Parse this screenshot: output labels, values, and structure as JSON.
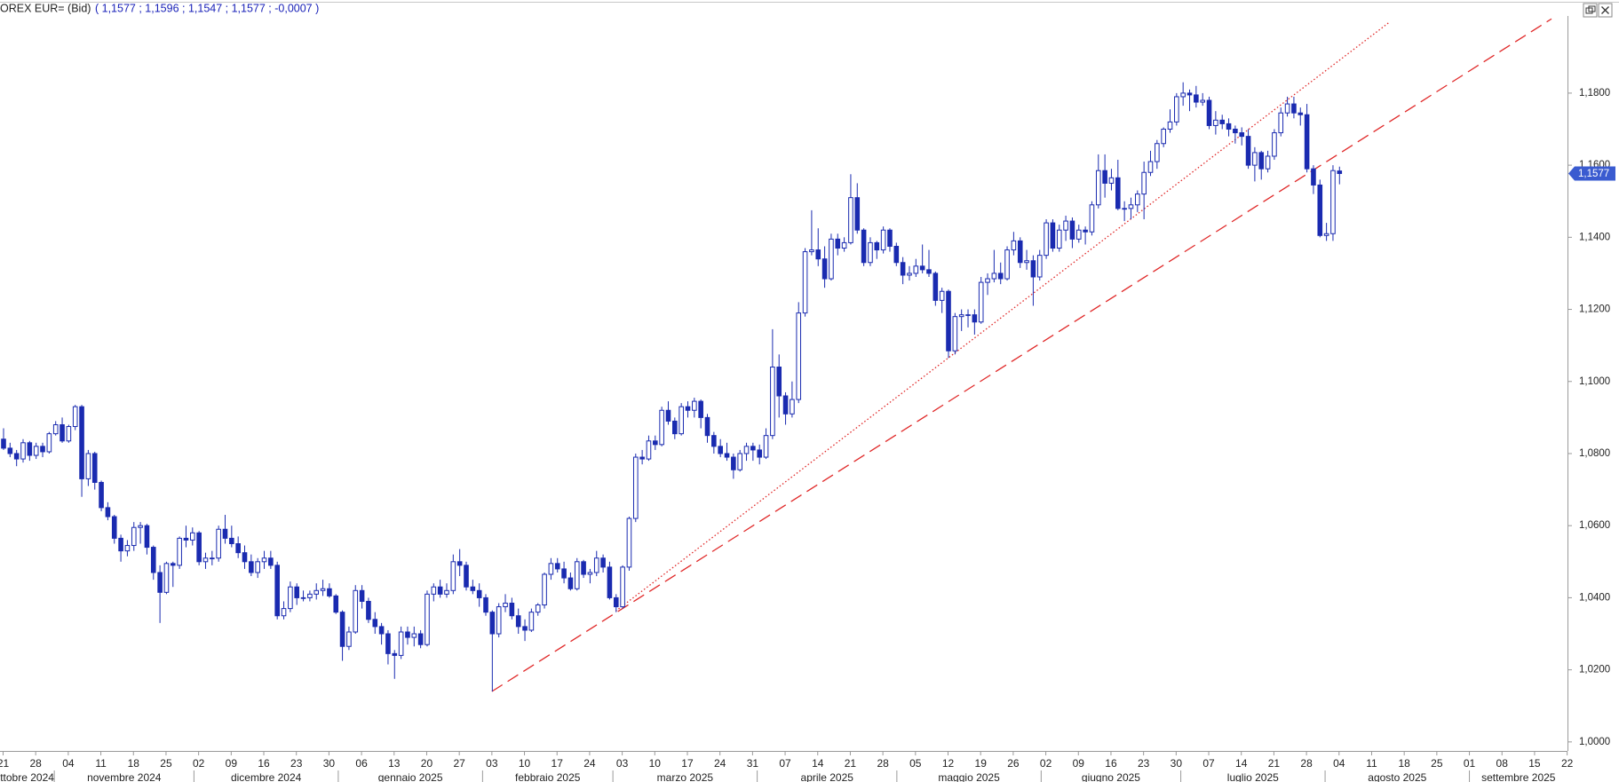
{
  "chart_data": {
    "type": "candlestick",
    "instrument": "OREX EUR= (Bid)",
    "quote": "( 1,1577 ;  1,1596 ;  1,1547 ;  1,1577 ;  -0,0007 )",
    "color": "#1a2bb0",
    "trendline_color": "#e02828",
    "ylim": [
      0.9975,
      1.2014
    ],
    "yticks": [
      {
        "value": 1.0,
        "label": "1,0000"
      },
      {
        "value": 1.02,
        "label": "1,0200"
      },
      {
        "value": 1.04,
        "label": "1,0400"
      },
      {
        "value": 1.06,
        "label": "1,0600"
      },
      {
        "value": 1.08,
        "label": "1,0800"
      },
      {
        "value": 1.1,
        "label": "1,1000"
      },
      {
        "value": 1.12,
        "label": "1,1200"
      },
      {
        "value": 1.14,
        "label": "1,1400"
      },
      {
        "value": 1.16,
        "label": "1,1600"
      },
      {
        "value": 1.18,
        "label": "1,1800"
      }
    ],
    "last_price": {
      "value": 1.1577,
      "label": "1,1577"
    },
    "categories": [
      "21",
      "28",
      "04",
      "11",
      "18",
      "25",
      "02",
      "09",
      "16",
      "23",
      "30",
      "06",
      "13",
      "20",
      "27",
      "03",
      "10",
      "17",
      "24",
      "03",
      "10",
      "17",
      "24",
      "31",
      "07",
      "14",
      "21",
      "28",
      "05",
      "12",
      "19",
      "26",
      "02",
      "09",
      "16",
      "23",
      "30",
      "07",
      "14",
      "21",
      "28",
      "04",
      "11",
      "18",
      "25",
      "01",
      "08",
      "15",
      "22"
    ],
    "months": [
      "ttobre 2024",
      "novembre 2024",
      "dicembre 2024",
      "gennaio 2025",
      "febbraio 2025",
      "marzo 2025",
      "aprile 2025",
      "maggio 2025",
      "giugno 2025",
      "luglio 2025",
      "agosto 2025",
      "settembre 2025"
    ],
    "trendlines": [
      {
        "style": "dashed",
        "points": [
          [
            75,
            1.014
          ],
          [
            237.6,
            1.2006
          ]
        ]
      },
      {
        "style": "dotted",
        "points": [
          [
            94,
            1.0363
          ],
          [
            212.6,
            1.1995
          ]
        ]
      }
    ],
    "candles": [
      [
        1.084,
        1.087,
        1.081,
        1.0815
      ],
      [
        1.0815,
        1.083,
        1.079,
        1.08
      ],
      [
        1.08,
        1.081,
        1.0765,
        1.0785
      ],
      [
        1.0785,
        1.084,
        1.0775,
        1.083
      ],
      [
        1.083,
        1.0835,
        1.078,
        1.0795
      ],
      [
        1.0795,
        1.083,
        1.0785,
        1.082
      ],
      [
        1.082,
        1.083,
        1.079,
        1.0805
      ],
      [
        1.0805,
        1.086,
        1.08,
        1.0855
      ],
      [
        1.0855,
        1.089,
        1.085,
        1.088
      ],
      [
        1.088,
        1.09,
        1.083,
        1.0835
      ],
      [
        1.0835,
        1.088,
        1.083,
        1.0875
      ],
      [
        1.0875,
        1.0935,
        1.0865,
        1.093
      ],
      [
        1.093,
        1.0935,
        1.068,
        1.073
      ],
      [
        1.073,
        1.081,
        1.071,
        1.08
      ],
      [
        1.08,
        1.0805,
        1.07,
        1.072
      ],
      [
        1.072,
        1.0725,
        1.064,
        1.065
      ],
      [
        1.065,
        1.0665,
        1.0615,
        1.0625
      ],
      [
        1.0625,
        1.063,
        1.055,
        1.0565
      ],
      [
        1.0565,
        1.0575,
        1.05,
        1.053
      ],
      [
        1.053,
        1.056,
        1.0515,
        1.0545
      ],
      [
        1.0545,
        1.061,
        1.053,
        1.0595
      ],
      [
        1.0595,
        1.061,
        1.055,
        1.06
      ],
      [
        1.06,
        1.0605,
        1.052,
        1.054
      ],
      [
        1.054,
        1.0545,
        1.045,
        1.047
      ],
      [
        1.047,
        1.049,
        1.033,
        1.0415
      ],
      [
        1.0415,
        1.05,
        1.041,
        1.0495
      ],
      [
        1.0495,
        1.05,
        1.043,
        1.049
      ],
      [
        1.049,
        1.057,
        1.048,
        1.0565
      ],
      [
        1.0565,
        1.06,
        1.054,
        1.056
      ],
      [
        1.056,
        1.0595,
        1.0545,
        1.058
      ],
      [
        1.058,
        1.0585,
        1.049,
        1.05
      ],
      [
        1.05,
        1.0525,
        1.048,
        1.051
      ],
      [
        1.051,
        1.053,
        1.049,
        1.051
      ],
      [
        1.051,
        1.06,
        1.05,
        1.059
      ],
      [
        1.059,
        1.063,
        1.055,
        1.0565
      ],
      [
        1.0565,
        1.06,
        1.054,
        1.055
      ],
      [
        1.055,
        1.057,
        1.051,
        1.0525
      ],
      [
        1.0525,
        1.0545,
        1.048,
        1.05
      ],
      [
        1.05,
        1.052,
        1.046,
        1.047
      ],
      [
        1.047,
        1.051,
        1.0455,
        1.05
      ],
      [
        1.05,
        1.053,
        1.048,
        1.051
      ],
      [
        1.051,
        1.053,
        1.048,
        1.049
      ],
      [
        1.049,
        1.05,
        1.034,
        1.035
      ],
      [
        1.035,
        1.039,
        1.034,
        1.037
      ],
      [
        1.037,
        1.0445,
        1.036,
        1.043
      ],
      [
        1.043,
        1.044,
        1.038,
        1.04
      ],
      [
        1.04,
        1.042,
        1.039,
        1.04
      ],
      [
        1.04,
        1.042,
        1.039,
        1.041
      ],
      [
        1.041,
        1.044,
        1.0395,
        1.042
      ],
      [
        1.042,
        1.045,
        1.0405,
        1.0425
      ],
      [
        1.0425,
        1.044,
        1.04,
        1.0405
      ],
      [
        1.0405,
        1.041,
        1.0355,
        1.036
      ],
      [
        1.036,
        1.0365,
        1.0225,
        1.0265
      ],
      [
        1.0265,
        1.032,
        1.0255,
        1.0305
      ],
      [
        1.0305,
        1.0435,
        1.03,
        1.042
      ],
      [
        1.042,
        1.0435,
        1.037,
        1.039
      ],
      [
        1.039,
        1.04,
        1.033,
        1.034
      ],
      [
        1.034,
        1.036,
        1.03,
        1.032
      ],
      [
        1.032,
        1.033,
        1.027,
        1.03
      ],
      [
        1.03,
        1.031,
        1.0215,
        1.0245
      ],
      [
        1.0245,
        1.0255,
        1.0175,
        1.024
      ],
      [
        1.024,
        1.032,
        1.023,
        1.0305
      ],
      [
        1.0305,
        1.032,
        1.027,
        1.029
      ],
      [
        1.029,
        1.032,
        1.0265,
        1.03
      ],
      [
        1.03,
        1.031,
        1.026,
        1.027
      ],
      [
        1.027,
        1.042,
        1.0265,
        1.041
      ],
      [
        1.041,
        1.044,
        1.039,
        1.043
      ],
      [
        1.043,
        1.045,
        1.04,
        1.041
      ],
      [
        1.041,
        1.044,
        1.04,
        1.042
      ],
      [
        1.042,
        1.052,
        1.041,
        1.05
      ],
      [
        1.05,
        1.0535,
        1.046,
        1.049
      ],
      [
        1.049,
        1.05,
        1.042,
        1.043
      ],
      [
        1.043,
        1.045,
        1.041,
        1.042
      ],
      [
        1.042,
        1.044,
        1.0375,
        1.04
      ],
      [
        1.04,
        1.041,
        1.035,
        1.036
      ],
      [
        1.036,
        1.0365,
        1.014,
        1.03
      ],
      [
        1.03,
        1.0385,
        1.029,
        1.0375
      ],
      [
        1.0375,
        1.041,
        1.036,
        1.0385
      ],
      [
        1.0385,
        1.04,
        1.034,
        1.035
      ],
      [
        1.035,
        1.037,
        1.03,
        1.032
      ],
      [
        1.032,
        1.034,
        1.028,
        1.031
      ],
      [
        1.031,
        1.037,
        1.0305,
        1.036
      ],
      [
        1.036,
        1.0385,
        1.035,
        1.038
      ],
      [
        1.038,
        1.047,
        1.037,
        1.0465
      ],
      [
        1.0465,
        1.051,
        1.045,
        1.0495
      ],
      [
        1.0495,
        1.051,
        1.047,
        1.048
      ],
      [
        1.048,
        1.05,
        1.044,
        1.0455
      ],
      [
        1.0455,
        1.047,
        1.042,
        1.0425
      ],
      [
        1.0425,
        1.051,
        1.042,
        1.05
      ],
      [
        1.05,
        1.0505,
        1.0455,
        1.0465
      ],
      [
        1.0465,
        1.048,
        1.044,
        1.047
      ],
      [
        1.047,
        1.053,
        1.046,
        1.051
      ],
      [
        1.051,
        1.052,
        1.047,
        1.0485
      ],
      [
        1.0485,
        1.05,
        1.0395,
        1.04
      ],
      [
        1.04,
        1.041,
        1.036,
        1.0375
      ],
      [
        1.0375,
        1.049,
        1.037,
        1.0485
      ],
      [
        1.0485,
        1.0625,
        1.0475,
        1.062
      ],
      [
        1.062,
        1.08,
        1.061,
        1.079
      ],
      [
        1.079,
        1.081,
        1.077,
        1.0785
      ],
      [
        1.0785,
        1.085,
        1.078,
        1.0835
      ],
      [
        1.0835,
        1.085,
        1.081,
        1.0825
      ],
      [
        1.0825,
        1.093,
        1.082,
        1.092
      ],
      [
        1.092,
        1.0945,
        1.088,
        1.089
      ],
      [
        1.089,
        1.09,
        1.084,
        1.0855
      ],
      [
        1.0855,
        1.094,
        1.085,
        1.093
      ],
      [
        1.093,
        1.0945,
        1.09,
        1.092
      ],
      [
        1.092,
        1.0955,
        1.09,
        1.0945
      ],
      [
        1.0945,
        1.095,
        1.087,
        1.09
      ],
      [
        1.09,
        1.091,
        1.083,
        1.085
      ],
      [
        1.085,
        1.086,
        1.08,
        1.082
      ],
      [
        1.082,
        1.084,
        1.079,
        1.08
      ],
      [
        1.08,
        1.083,
        1.078,
        1.079
      ],
      [
        1.079,
        1.08,
        1.073,
        1.0755
      ],
      [
        1.0755,
        1.081,
        1.075,
        1.08
      ],
      [
        1.08,
        1.083,
        1.078,
        1.082
      ],
      [
        1.082,
        1.083,
        1.078,
        1.081
      ],
      [
        1.081,
        1.0825,
        1.077,
        1.079
      ],
      [
        1.079,
        1.087,
        1.0785,
        1.085
      ],
      [
        1.085,
        1.1145,
        1.084,
        1.104
      ],
      [
        1.104,
        1.1075,
        1.09,
        1.096
      ],
      [
        1.096,
        1.097,
        1.088,
        1.091
      ],
      [
        1.091,
        1.1,
        1.09,
        1.095
      ],
      [
        1.095,
        1.122,
        1.094,
        1.119
      ],
      [
        1.119,
        1.137,
        1.118,
        1.136
      ],
      [
        1.136,
        1.1475,
        1.135,
        1.1365
      ],
      [
        1.1365,
        1.1425,
        1.132,
        1.134
      ],
      [
        1.134,
        1.1375,
        1.126,
        1.1285
      ],
      [
        1.1285,
        1.141,
        1.128,
        1.1395
      ],
      [
        1.1395,
        1.141,
        1.135,
        1.137
      ],
      [
        1.137,
        1.14,
        1.136,
        1.1385
      ],
      [
        1.1385,
        1.1575,
        1.138,
        1.151
      ],
      [
        1.151,
        1.155,
        1.141,
        1.142
      ],
      [
        1.142,
        1.1425,
        1.132,
        1.133
      ],
      [
        1.133,
        1.14,
        1.132,
        1.1385
      ],
      [
        1.1385,
        1.139,
        1.134,
        1.1365
      ],
      [
        1.1365,
        1.143,
        1.1355,
        1.142
      ],
      [
        1.142,
        1.1425,
        1.136,
        1.1375
      ],
      [
        1.1375,
        1.1385,
        1.132,
        1.133
      ],
      [
        1.133,
        1.1345,
        1.127,
        1.1295
      ],
      [
        1.1295,
        1.132,
        1.128,
        1.13
      ],
      [
        1.13,
        1.134,
        1.129,
        1.132
      ],
      [
        1.132,
        1.138,
        1.13,
        1.131
      ],
      [
        1.131,
        1.1365,
        1.129,
        1.13
      ],
      [
        1.13,
        1.1305,
        1.121,
        1.1225
      ],
      [
        1.1225,
        1.126,
        1.119,
        1.125
      ],
      [
        1.125,
        1.1255,
        1.1065,
        1.1085
      ],
      [
        1.1085,
        1.119,
        1.1075,
        1.118
      ],
      [
        1.118,
        1.12,
        1.114,
        1.1185
      ],
      [
        1.1185,
        1.12,
        1.115,
        1.1185
      ],
      [
        1.1185,
        1.12,
        1.113,
        1.1165
      ],
      [
        1.1165,
        1.129,
        1.116,
        1.1275
      ],
      [
        1.1275,
        1.13,
        1.124,
        1.1285
      ],
      [
        1.1285,
        1.1365,
        1.1275,
        1.13
      ],
      [
        1.13,
        1.133,
        1.127,
        1.1285
      ],
      [
        1.1285,
        1.1375,
        1.128,
        1.1365
      ],
      [
        1.1365,
        1.1415,
        1.135,
        1.139
      ],
      [
        1.139,
        1.14,
        1.1315,
        1.133
      ],
      [
        1.133,
        1.1365,
        1.131,
        1.1335
      ],
      [
        1.1335,
        1.135,
        1.121,
        1.129
      ],
      [
        1.129,
        1.1365,
        1.128,
        1.135
      ],
      [
        1.135,
        1.145,
        1.134,
        1.144
      ],
      [
        1.144,
        1.145,
        1.136,
        1.137
      ],
      [
        1.137,
        1.1435,
        1.136,
        1.142
      ],
      [
        1.142,
        1.146,
        1.139,
        1.1445
      ],
      [
        1.1445,
        1.1455,
        1.137,
        1.1395
      ],
      [
        1.1395,
        1.1435,
        1.1385,
        1.142
      ],
      [
        1.142,
        1.143,
        1.138,
        1.1415
      ],
      [
        1.1415,
        1.15,
        1.1405,
        1.149
      ],
      [
        1.149,
        1.163,
        1.148,
        1.1585
      ],
      [
        1.1585,
        1.163,
        1.151,
        1.155
      ],
      [
        1.155,
        1.159,
        1.153,
        1.1565
      ],
      [
        1.1565,
        1.1615,
        1.1475,
        1.148
      ],
      [
        1.148,
        1.15,
        1.1445,
        1.148
      ],
      [
        1.148,
        1.151,
        1.145,
        1.149
      ],
      [
        1.149,
        1.153,
        1.147,
        1.152
      ],
      [
        1.152,
        1.161,
        1.145,
        1.158
      ],
      [
        1.158,
        1.164,
        1.157,
        1.161
      ],
      [
        1.161,
        1.167,
        1.159,
        1.166
      ],
      [
        1.166,
        1.1705,
        1.165,
        1.17
      ],
      [
        1.17,
        1.1755,
        1.169,
        1.172
      ],
      [
        1.172,
        1.18,
        1.171,
        1.179
      ],
      [
        1.179,
        1.183,
        1.1765,
        1.18
      ],
      [
        1.18,
        1.181,
        1.175,
        1.1795
      ],
      [
        1.1795,
        1.182,
        1.176,
        1.1775
      ],
      [
        1.1775,
        1.18,
        1.1765,
        1.178
      ],
      [
        1.178,
        1.179,
        1.17,
        1.171
      ],
      [
        1.171,
        1.175,
        1.1685,
        1.1725
      ],
      [
        1.1725,
        1.174,
        1.17,
        1.1715
      ],
      [
        1.1715,
        1.173,
        1.168,
        1.17
      ],
      [
        1.17,
        1.171,
        1.166,
        1.169
      ],
      [
        1.169,
        1.1705,
        1.1655,
        1.168
      ],
      [
        1.168,
        1.17,
        1.159,
        1.16
      ],
      [
        1.16,
        1.165,
        1.1555,
        1.1635
      ],
      [
        1.1635,
        1.164,
        1.156,
        1.159
      ],
      [
        1.159,
        1.164,
        1.158,
        1.1625
      ],
      [
        1.1625,
        1.17,
        1.1615,
        1.169
      ],
      [
        1.169,
        1.176,
        1.168,
        1.1745
      ],
      [
        1.1745,
        1.179,
        1.1735,
        1.177
      ],
      [
        1.177,
        1.179,
        1.173,
        1.1745
      ],
      [
        1.1745,
        1.176,
        1.171,
        1.174
      ],
      [
        1.174,
        1.177,
        1.158,
        1.159
      ],
      [
        1.159,
        1.16,
        1.152,
        1.1545
      ],
      [
        1.1545,
        1.156,
        1.14,
        1.1405
      ],
      [
        1.1405,
        1.144,
        1.139,
        1.141
      ],
      [
        1.141,
        1.16,
        1.139,
        1.1585
      ],
      [
        1.1584,
        1.1596,
        1.1547,
        1.1577
      ]
    ]
  }
}
